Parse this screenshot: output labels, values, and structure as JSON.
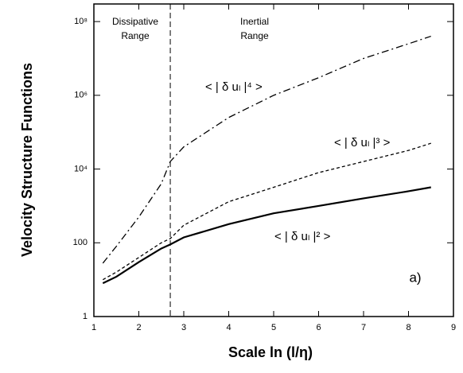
{
  "chart_data": {
    "type": "line",
    "xlabel": "Scale ln (l/η)",
    "ylabel": "Velocity Structure Functions",
    "x": [
      1.2,
      1.5,
      2,
      2.5,
      2.7,
      3,
      4,
      5,
      6,
      7,
      8,
      8.5
    ],
    "series": [
      {
        "name": "< | δ uₗ |⁴ >",
        "color": "#000",
        "dash": "9 4 2 4",
        "values": [
          28,
          80,
          500,
          4000,
          16000,
          40000,
          250000,
          1000000,
          3000000,
          10000000,
          25000000,
          40000000
        ]
      },
      {
        "name": "< | δ uₗ |³ >",
        "color": "#000",
        "dash": "4 3",
        "values": [
          10,
          16,
          40,
          100,
          130,
          300,
          1300,
          3200,
          8000,
          16000,
          32000,
          50000
        ]
      },
      {
        "name": "< | δ uₗ |² >",
        "color": "#000",
        "dash": "none",
        "values": [
          8,
          12,
          30,
          70,
          90,
          140,
          320,
          630,
          1000,
          1600,
          2500,
          3200
        ]
      }
    ],
    "xlim": [
      1,
      9
    ],
    "xticks": [
      1,
      2,
      3,
      4,
      5,
      6,
      7,
      8,
      9
    ],
    "ylim": [
      1,
      300000000
    ],
    "log_y": true,
    "yticks": [
      1,
      100,
      {
        "value": 10000,
        "label": "10⁴"
      },
      {
        "value": 1000000,
        "label": "10⁶"
      },
      {
        "value": 100000000,
        "label": "10⁸"
      }
    ],
    "vline": 2.7,
    "annotations": [
      "Dissipative",
      "Range",
      "Inertial",
      "Range",
      "a)"
    ]
  }
}
